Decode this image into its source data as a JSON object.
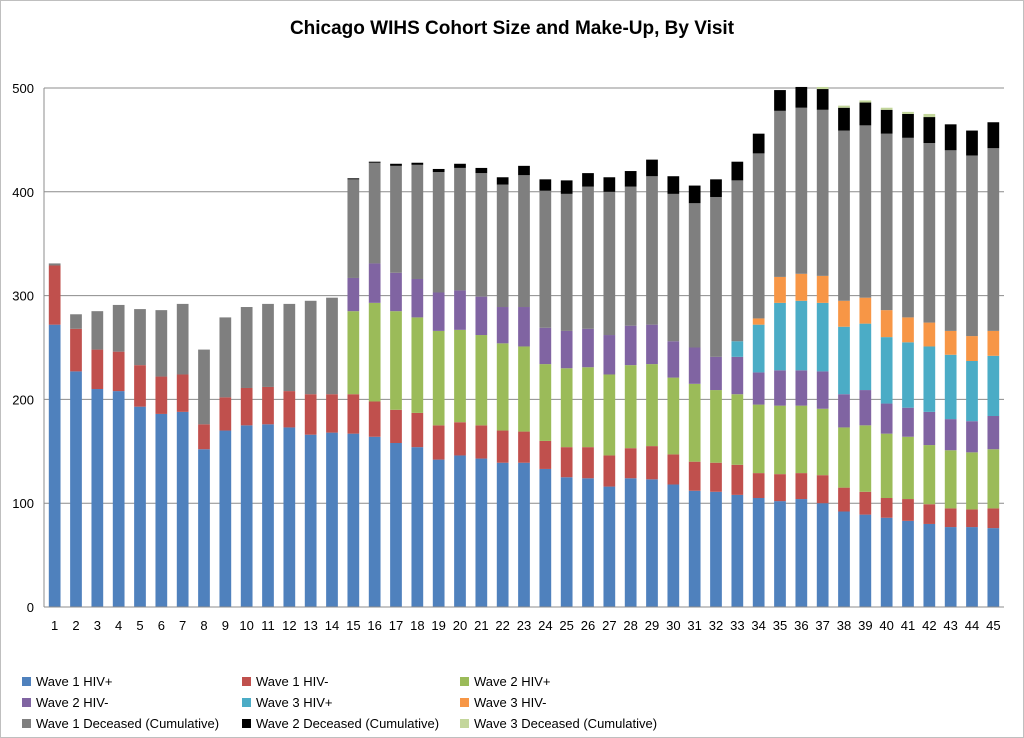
{
  "chart_data": {
    "type": "bar",
    "stacked": true,
    "title": "Chicago WIHS Cohort Size and Make-Up, By Visit",
    "xlabel": "",
    "ylabel": "",
    "ylim": [
      0,
      500
    ],
    "yticks": [
      "0",
      "100",
      "200",
      "300",
      "400",
      "500"
    ],
    "grid": true,
    "legend_position": "bottom",
    "categories": [
      "1",
      "2",
      "3",
      "4",
      "5",
      "6",
      "7",
      "8",
      "9",
      "10",
      "11",
      "12",
      "13",
      "14",
      "15",
      "16",
      "17",
      "18",
      "19",
      "20",
      "21",
      "22",
      "23",
      "24",
      "25",
      "26",
      "27",
      "28",
      "29",
      "30",
      "31",
      "32",
      "33",
      "34",
      "35",
      "36",
      "37",
      "38",
      "39",
      "40",
      "41",
      "42",
      "43",
      "44",
      "45"
    ],
    "series": [
      {
        "name": "Wave 1 HIV+",
        "color": "#4f81bd",
        "values": [
          272,
          227,
          210,
          208,
          193,
          186,
          188,
          152,
          170,
          175,
          176,
          173,
          166,
          168,
          167,
          164,
          158,
          154,
          142,
          146,
          143,
          139,
          139,
          133,
          125,
          124,
          116,
          124,
          123,
          118,
          112,
          111,
          108,
          105,
          102,
          104,
          100,
          92,
          89,
          86,
          83,
          80,
          77,
          77,
          76
        ]
      },
      {
        "name": "Wave 1 HIV-",
        "color": "#c0504d",
        "values": [
          57,
          41,
          38,
          38,
          40,
          36,
          36,
          24,
          32,
          36,
          36,
          35,
          39,
          37,
          38,
          34,
          32,
          33,
          33,
          32,
          32,
          31,
          30,
          27,
          29,
          30,
          30,
          29,
          32,
          29,
          28,
          28,
          29,
          24,
          26,
          25,
          27,
          23,
          22,
          19,
          21,
          19,
          18,
          17,
          19
        ]
      },
      {
        "name": "Wave 2 HIV+",
        "color": "#9bbb59",
        "values": [
          0,
          0,
          0,
          0,
          0,
          0,
          0,
          0,
          0,
          0,
          0,
          0,
          0,
          0,
          80,
          95,
          95,
          92,
          91,
          89,
          87,
          84,
          82,
          74,
          76,
          77,
          78,
          80,
          79,
          74,
          75,
          70,
          68,
          66,
          66,
          65,
          64,
          58,
          64,
          62,
          60,
          57,
          56,
          55,
          57
        ]
      },
      {
        "name": "Wave 2 HIV-",
        "color": "#8064a2",
        "values": [
          0,
          0,
          0,
          0,
          0,
          0,
          0,
          0,
          0,
          0,
          0,
          0,
          0,
          0,
          32,
          38,
          37,
          37,
          37,
          38,
          37,
          35,
          38,
          35,
          36,
          37,
          38,
          38,
          38,
          35,
          35,
          32,
          36,
          31,
          34,
          34,
          36,
          32,
          34,
          29,
          28,
          32,
          30,
          30,
          32
        ]
      },
      {
        "name": "Wave 3 HIV+",
        "color": "#4bacc6",
        "values": [
          0,
          0,
          0,
          0,
          0,
          0,
          0,
          0,
          0,
          0,
          0,
          0,
          0,
          0,
          0,
          0,
          0,
          0,
          0,
          0,
          0,
          0,
          0,
          0,
          0,
          0,
          0,
          0,
          0,
          0,
          0,
          0,
          15,
          46,
          65,
          67,
          66,
          65,
          64,
          64,
          63,
          63,
          62,
          58,
          58
        ]
      },
      {
        "name": "Wave 3 HIV-",
        "color": "#f79646",
        "values": [
          0,
          0,
          0,
          0,
          0,
          0,
          0,
          0,
          0,
          0,
          0,
          0,
          0,
          0,
          0,
          0,
          0,
          0,
          0,
          0,
          0,
          0,
          0,
          0,
          0,
          0,
          0,
          0,
          0,
          0,
          0,
          0,
          0,
          6,
          25,
          26,
          26,
          25,
          25,
          26,
          24,
          23,
          23,
          24,
          24
        ]
      },
      {
        "name": "Wave 1 Deceased (Cumulative)",
        "color": "#7f7f7f",
        "values": [
          2,
          14,
          37,
          45,
          54,
          64,
          68,
          72,
          77,
          78,
          80,
          84,
          90,
          93,
          95,
          97,
          103,
          110,
          116,
          118,
          119,
          118,
          127,
          132,
          132,
          137,
          138,
          134,
          143,
          142,
          139,
          154,
          155,
          159,
          160,
          160,
          160,
          164,
          166,
          170,
          173,
          173,
          174,
          174,
          176
        ]
      },
      {
        "name": "Wave 2 Deceased (Cumulative)",
        "color": "#000000",
        "values": [
          0,
          0,
          0,
          0,
          0,
          0,
          0,
          0,
          0,
          0,
          0,
          0,
          0,
          0,
          1,
          1,
          2,
          2,
          3,
          4,
          5,
          7,
          9,
          11,
          13,
          13,
          14,
          15,
          16,
          17,
          17,
          17,
          18,
          19,
          20,
          20,
          20,
          22,
          22,
          23,
          23,
          25,
          25,
          24,
          25
        ]
      },
      {
        "name": "Wave 3 Deceased (Cumulative)",
        "color": "#c3d69b",
        "values": [
          0,
          0,
          0,
          0,
          0,
          0,
          0,
          0,
          0,
          0,
          0,
          0,
          0,
          0,
          0,
          0,
          0,
          0,
          0,
          0,
          0,
          0,
          0,
          0,
          0,
          0,
          0,
          0,
          0,
          0,
          0,
          0,
          0,
          0,
          0,
          0,
          2,
          2,
          2,
          2,
          2,
          3,
          0,
          0,
          0
        ]
      }
    ]
  }
}
